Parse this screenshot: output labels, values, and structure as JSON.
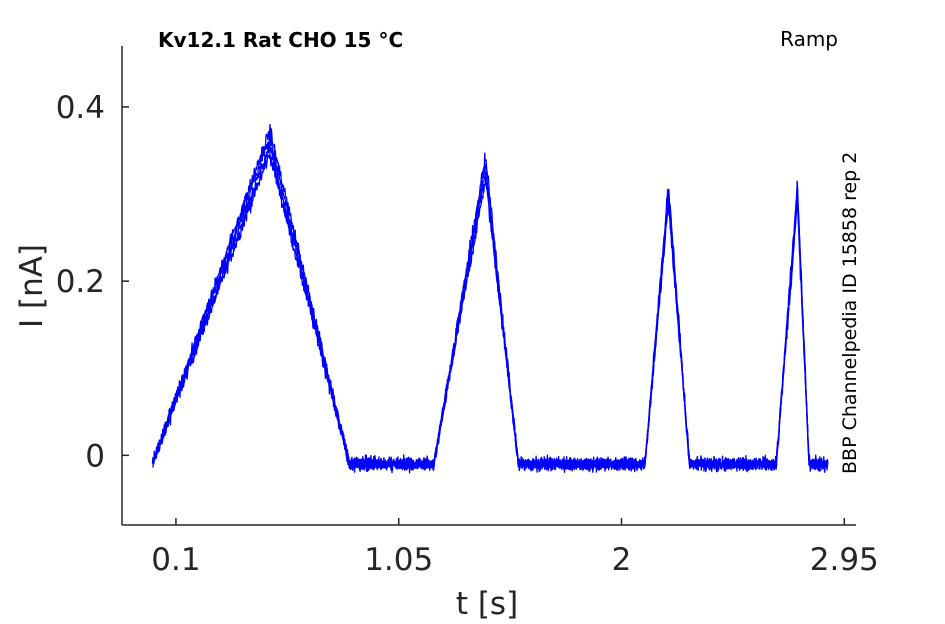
{
  "chart_data": {
    "type": "line",
    "title": "Kv12.1  Rat  CHO  15 °C",
    "protocol_label": "Ramp",
    "side_label": "BBP Channelpedia ID 15858 rep 2",
    "xlabel": "t [s]",
    "ylabel": "I [nA]",
    "xlim": [
      -0.13,
      3.0
    ],
    "ylim": [
      -0.08,
      0.47
    ],
    "xticks": [
      0.1,
      1.05,
      2,
      2.95
    ],
    "xtick_labels": [
      "0.1",
      "1.05",
      "2",
      "2.95"
    ],
    "yticks": [
      0,
      0.2,
      0.4
    ],
    "ytick_labels": [
      "0",
      "0.2",
      "0.4"
    ],
    "grid": false,
    "line_color": "#0000ff",
    "baseline_nA": -0.01,
    "noise_nA": 0.008,
    "sweep_count": 4,
    "x_range_s": [
      0.0,
      2.88
    ],
    "peaks": [
      {
        "start_s": 0.0,
        "peak_s": 0.5,
        "end_s": 0.84,
        "peak_nA": 0.36
      },
      {
        "start_s": 1.2,
        "peak_s": 1.42,
        "end_s": 1.56,
        "peak_nA": 0.33
      },
      {
        "start_s": 2.1,
        "peak_s": 2.2,
        "end_s": 2.29,
        "peak_nA": 0.3
      },
      {
        "start_s": 2.66,
        "peak_s": 2.75,
        "end_s": 2.8,
        "peak_nA": 0.3
      }
    ]
  }
}
